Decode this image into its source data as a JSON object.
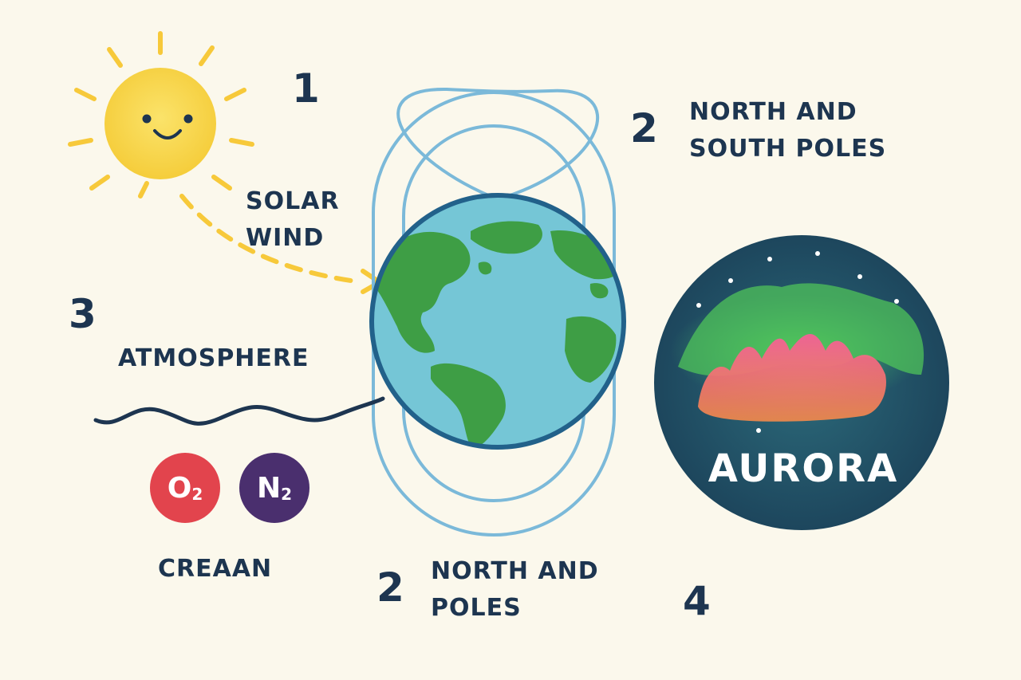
{
  "steps": {
    "step1_number": "1",
    "step2_top_number": "2",
    "step2_top_label": [
      "NORTH AND",
      "SOUTH POLES"
    ],
    "solar_wind_label": [
      "SOLAR",
      "WIND"
    ],
    "step3_number": "3",
    "atmosphere_label": "ATMOSPHERE",
    "molecules": [
      {
        "symbol": "O",
        "subscript": "2",
        "color": "#e2444d"
      },
      {
        "symbol": "N",
        "subscript": "2",
        "color": "#4a2f6e"
      }
    ],
    "crean_label": "CREAAN",
    "step2_bottom_number": "2",
    "step2_bottom_label": [
      "NORTH AND",
      "POLES"
    ],
    "step4_number": "4",
    "aurora_label": "AURORA"
  },
  "colors": {
    "background": "#fbf8ec",
    "text": "#1d3550",
    "sun": "#f7d54a",
    "sun_rays": "#f7c93a",
    "ocean": "#75c6d6",
    "land": "#3e9e45",
    "field_lines": "#7bb9d9",
    "night_sky": "#1d4a5f"
  },
  "icons": [
    "sun-icon",
    "earth-icon",
    "aurora-icon",
    "wave-icon"
  ]
}
